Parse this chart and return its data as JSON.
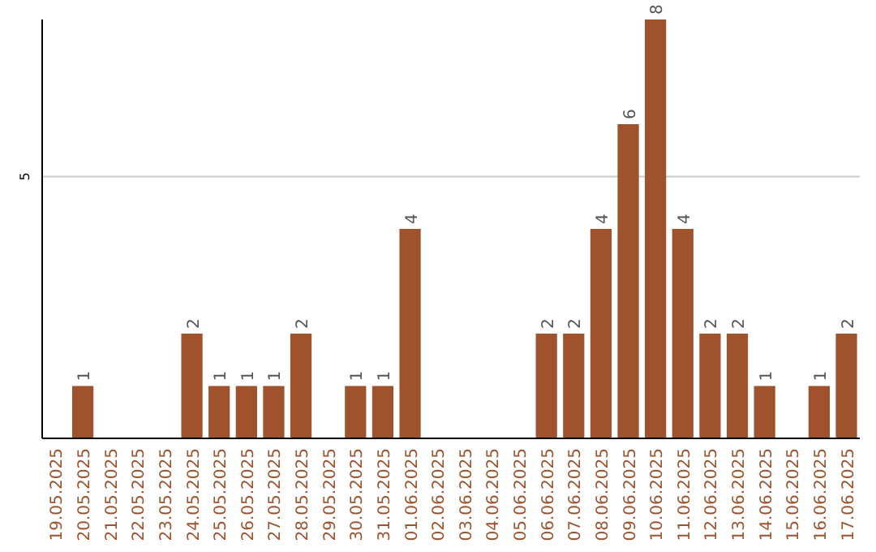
{
  "chart_data": {
    "type": "bar",
    "categories": [
      "19.05.2025",
      "20.05.2025",
      "21.05.2025",
      "22.05.2025",
      "23.05.2025",
      "24.05.2025",
      "25.05.2025",
      "26.05.2025",
      "27.05.2025",
      "28.05.2025",
      "29.05.2025",
      "30.05.2025",
      "31.05.2025",
      "01.06.2025",
      "02.06.2025",
      "03.06.2025",
      "04.06.2025",
      "05.06.2025",
      "06.06.2025",
      "07.06.2025",
      "08.06.2025",
      "09.06.2025",
      "10.06.2025",
      "11.06.2025",
      "12.06.2025",
      "13.06.2025",
      "14.06.2025",
      "15.06.2025",
      "16.06.2025",
      "17.06.2025"
    ],
    "values": [
      0,
      1,
      0,
      0,
      0,
      2,
      1,
      1,
      1,
      2,
      0,
      1,
      1,
      4,
      0,
      0,
      0,
      0,
      2,
      2,
      4,
      6,
      8,
      4,
      2,
      2,
      1,
      0,
      1,
      2
    ],
    "value_labels": [
      null,
      "1",
      null,
      null,
      null,
      "2",
      "1",
      "1",
      "1",
      "2",
      null,
      "1",
      "1",
      "4",
      null,
      null,
      null,
      null,
      "2",
      "2",
      "4",
      "6",
      "8",
      "4",
      "2",
      "2",
      "1",
      null,
      "1",
      "2"
    ],
    "color": "#a0522d",
    "ylim": [
      0,
      8
    ],
    "yticks": [
      5
    ],
    "grid": "y"
  }
}
